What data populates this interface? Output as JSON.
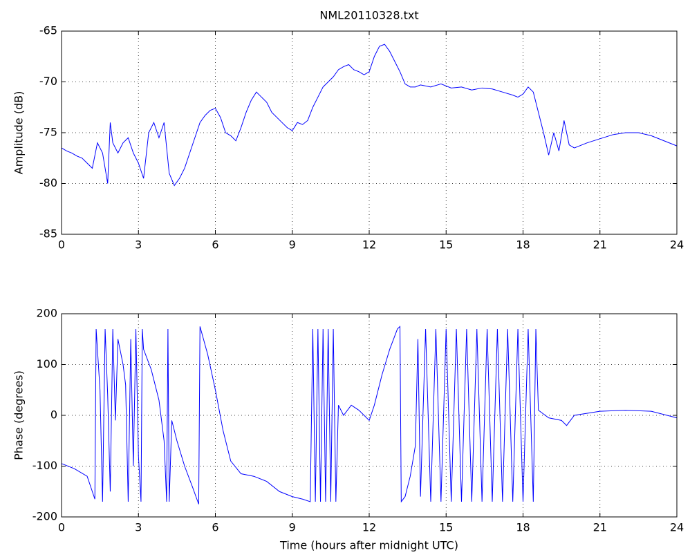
{
  "chart_data": [
    {
      "type": "line",
      "title": "NML20110328.txt",
      "ylabel": "Amplitude (dB)",
      "color": "#0000ff",
      "grid": true,
      "xlim": [
        0,
        24
      ],
      "xticks": [
        0,
        3,
        6,
        9,
        12,
        15,
        18,
        21,
        24
      ],
      "ylim": [
        -85,
        -65
      ],
      "yticks": [
        -85,
        -80,
        -75,
        -70,
        -65
      ],
      "x": [
        0,
        0.2,
        0.4,
        0.6,
        0.8,
        1.0,
        1.2,
        1.4,
        1.6,
        1.8,
        1.9,
        2.0,
        2.2,
        2.4,
        2.6,
        2.8,
        3.0,
        3.2,
        3.4,
        3.6,
        3.8,
        4.0,
        4.2,
        4.4,
        4.6,
        4.8,
        5.0,
        5.2,
        5.4,
        5.6,
        5.8,
        6.0,
        6.2,
        6.4,
        6.6,
        6.8,
        7.0,
        7.2,
        7.4,
        7.6,
        7.8,
        8.0,
        8.2,
        8.4,
        8.6,
        8.8,
        9.0,
        9.2,
        9.4,
        9.6,
        9.8,
        10.0,
        10.2,
        10.4,
        10.6,
        10.8,
        11.0,
        11.2,
        11.4,
        11.6,
        11.8,
        12.0,
        12.2,
        12.4,
        12.6,
        12.8,
        13.0,
        13.2,
        13.4,
        13.6,
        13.8,
        14.0,
        14.4,
        14.8,
        15.2,
        15.6,
        16.0,
        16.4,
        16.8,
        17.2,
        17.6,
        17.8,
        18.0,
        18.2,
        18.4,
        18.6,
        18.8,
        19.0,
        19.2,
        19.4,
        19.6,
        19.8,
        20.0,
        20.5,
        21.0,
        21.5,
        22.0,
        22.5,
        23.0,
        23.5,
        24
      ],
      "values": [
        -76.5,
        -76.8,
        -77,
        -77.3,
        -77.5,
        -78,
        -78.5,
        -76,
        -77,
        -80,
        -74,
        -76,
        -77,
        -76,
        -75.5,
        -77,
        -78,
        -79.5,
        -75,
        -74,
        -75.5,
        -74,
        -79,
        -80.2,
        -79.5,
        -78.5,
        -77,
        -75.5,
        -74,
        -73.3,
        -72.8,
        -72.6,
        -73.5,
        -75,
        -75.3,
        -75.8,
        -74.5,
        -73,
        -71.8,
        -71,
        -71.5,
        -72,
        -73,
        -73.5,
        -74,
        -74.5,
        -74.8,
        -74,
        -74.2,
        -73.8,
        -72.5,
        -71.5,
        -70.5,
        -70,
        -69.5,
        -68.8,
        -68.5,
        -68.3,
        -68.8,
        -69,
        -69.3,
        -69,
        -67.5,
        -66.5,
        -66.3,
        -67,
        -68,
        -69,
        -70.2,
        -70.5,
        -70.5,
        -70.3,
        -70.5,
        -70.2,
        -70.6,
        -70.5,
        -70.8,
        -70.6,
        -70.7,
        -71,
        -71.3,
        -71.5,
        -71.2,
        -70.5,
        -71,
        -73,
        -75,
        -77.2,
        -75,
        -76.8,
        -73.8,
        -76.2,
        -76.5,
        -76,
        -75.6,
        -75.2,
        -75,
        -75,
        -75.3,
        -75.8,
        -76.3
      ]
    },
    {
      "type": "line",
      "ylabel": "Phase (degrees)",
      "xlabel": "Time (hours after midnight UTC)",
      "color": "#0000ff",
      "grid": true,
      "xlim": [
        0,
        24
      ],
      "xticks": [
        0,
        3,
        6,
        9,
        12,
        15,
        18,
        21,
        24
      ],
      "ylim": [
        -200,
        200
      ],
      "yticks": [
        -200,
        -100,
        0,
        100,
        200
      ],
      "x": [
        0,
        0.5,
        1.0,
        1.3,
        1.35,
        1.5,
        1.6,
        1.7,
        1.8,
        1.9,
        2.0,
        2.1,
        2.2,
        2.4,
        2.5,
        2.6,
        2.7,
        2.8,
        2.9,
        3.0,
        3.1,
        3.15,
        3.2,
        3.5,
        3.8,
        4.0,
        4.1,
        4.15,
        4.2,
        4.3,
        4.5,
        4.8,
        5.1,
        5.35,
        5.4,
        5.7,
        6.0,
        6.3,
        6.6,
        7.0,
        7.5,
        8.0,
        8.5,
        9.0,
        9.4,
        9.7,
        9.8,
        9.9,
        10.0,
        10.1,
        10.2,
        10.3,
        10.4,
        10.5,
        10.6,
        10.7,
        10.8,
        11.0,
        11.3,
        11.6,
        12.0,
        12.2,
        12.5,
        12.8,
        13.1,
        13.2,
        13.25,
        13.4,
        13.6,
        13.8,
        13.9,
        14.0,
        14.2,
        14.4,
        14.6,
        14.8,
        15.0,
        15.2,
        15.4,
        15.6,
        15.8,
        16.0,
        16.2,
        16.4,
        16.6,
        16.8,
        17.0,
        17.2,
        17.4,
        17.6,
        17.8,
        18.0,
        18.2,
        18.4,
        18.5,
        18.6,
        19.0,
        19.5,
        19.7,
        20.0,
        21.0,
        22.0,
        23.0,
        24
      ],
      "values": [
        -95,
        -105,
        -120,
        -165,
        170,
        50,
        -170,
        170,
        40,
        -150,
        170,
        -10,
        150,
        100,
        60,
        -170,
        150,
        -100,
        170,
        -80,
        -170,
        170,
        130,
        90,
        30,
        -50,
        -170,
        170,
        -170,
        -10,
        -50,
        -100,
        -140,
        -175,
        175,
        120,
        50,
        -30,
        -90,
        -115,
        -120,
        -130,
        -150,
        -160,
        -165,
        -170,
        170,
        -170,
        170,
        -170,
        170,
        -170,
        170,
        -170,
        170,
        -170,
        20,
        0,
        20,
        10,
        -10,
        20,
        80,
        130,
        170,
        175,
        -170,
        -160,
        -120,
        -60,
        150,
        -160,
        170,
        -170,
        170,
        -170,
        170,
        -170,
        170,
        -170,
        170,
        -170,
        170,
        -170,
        170,
        -170,
        170,
        -170,
        170,
        -170,
        170,
        -170,
        170,
        -170,
        170,
        10,
        -5,
        -10,
        -20,
        0,
        8,
        10,
        8,
        -5
      ]
    }
  ]
}
